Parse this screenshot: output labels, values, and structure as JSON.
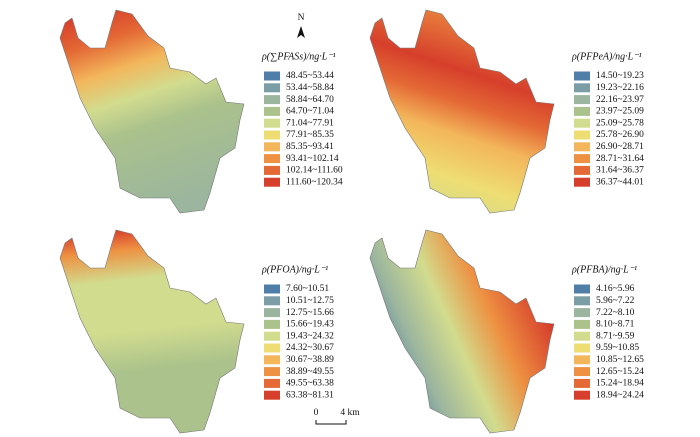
{
  "legend_colors": [
    "#4f7fa8",
    "#7b9da5",
    "#9bb59e",
    "#abc28c",
    "#d2dc8e",
    "#eedd72",
    "#f3b65b",
    "#ee9142",
    "#e46935",
    "#d63f2b"
  ],
  "north_label": "N",
  "scale_bar": {
    "start": "0",
    "end": "4 km"
  },
  "panels": [
    {
      "legend_title": "ρ(∑PFASs)/ng·L⁻¹",
      "classes": [
        "48.45~53.44",
        "53.44~58.84",
        "58.84~64.70",
        "64.70~71.04",
        "71.04~77.91",
        "77.91~85.35",
        "85.35~93.41",
        "93.41~102.14",
        "102.14~111.60",
        "111.60~120.34"
      ]
    },
    {
      "legend_title": "ρ(PFPeA)/ng·L⁻¹",
      "classes": [
        "14.50~19.23",
        "19.23~22.16",
        "22.16~23.97",
        "23.97~25.09",
        "25.09~25.78",
        "25.78~26.90",
        "26.90~28.71",
        "28.71~31.64",
        "31.64~36.37",
        "36.37~44.01"
      ]
    },
    {
      "legend_title": "ρ(PFOA)/ng·L⁻¹",
      "classes": [
        "7.60~10.51",
        "10.51~12.75",
        "12.75~15.66",
        "15.66~19.43",
        "19.43~24.32",
        "24.32~30.67",
        "30.67~38.89",
        "38.89~49.55",
        "49.55~63.38",
        "63.38~81.31"
      ]
    },
    {
      "legend_title": "ρ(PFBA)/ng·L⁻¹",
      "classes": [
        "4.16~5.96",
        "5.96~7.22",
        "7.22~8.10",
        "8.10~8.71",
        "8.71~9.59",
        "9.59~10.85",
        "10.85~12.65",
        "12.65~15.24",
        "15.24~18.94",
        "18.94~24.24"
      ]
    }
  ]
}
